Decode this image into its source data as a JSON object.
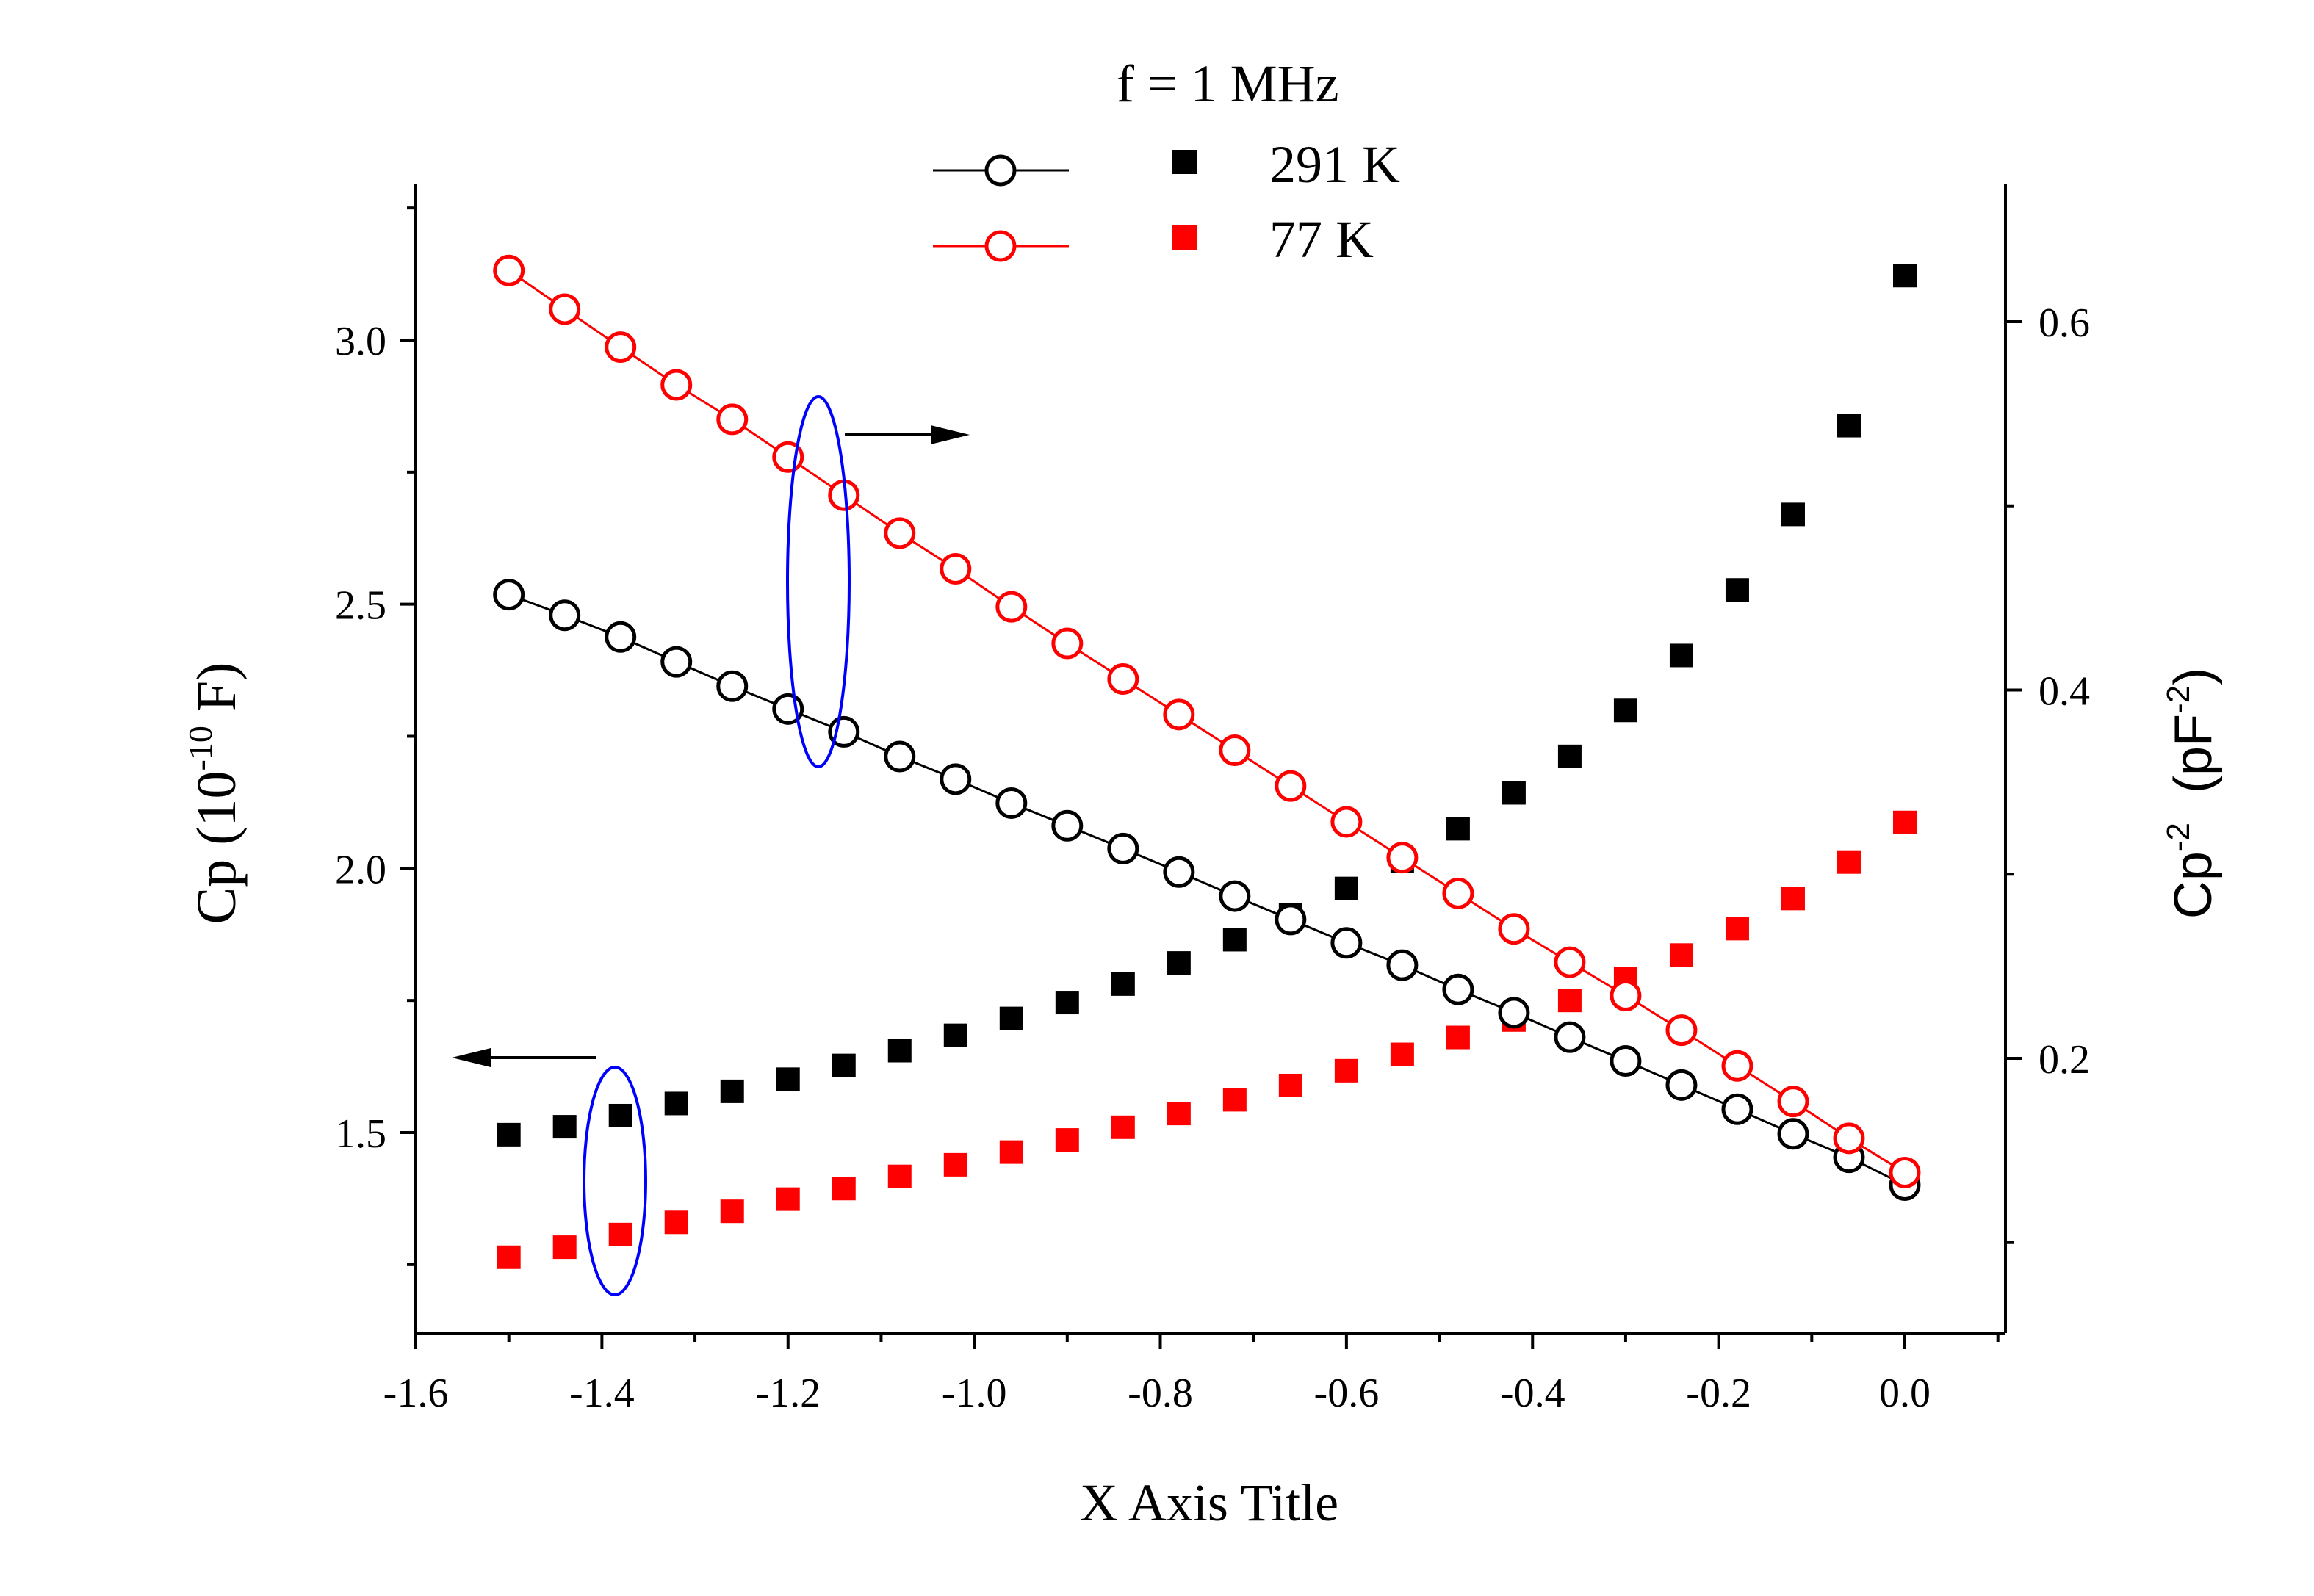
{
  "chart_data": {
    "type": "scatter",
    "annotation": "f = 1 MHz",
    "xlabel": "X Axis Title",
    "ylabel_left": {
      "base": "Cp (10",
      "sup": "-10",
      "tail": " F)"
    },
    "ylabel_right": {
      "base": "Cp",
      "sup1": "-2",
      "mid": "  (pF",
      "sup2": "-2",
      "tail": ")"
    },
    "xlim": [
      -1.6,
      0.1
    ],
    "ylim_left": [
      1.15,
      3.27
    ],
    "ylim_right": [
      0.05,
      0.675
    ],
    "x_ticks": [
      -1.6,
      -1.4,
      -1.2,
      -1.0,
      -0.8,
      -0.6,
      -0.4,
      -0.2,
      0.0
    ],
    "x_tick_labels": [
      "-1.6",
      "-1.4",
      "-1.2",
      "-1.0",
      "-0.8",
      "-0.6",
      "-0.4",
      "-0.2",
      "0.0"
    ],
    "y_left_ticks": [
      1.5,
      2.0,
      2.5,
      3.0
    ],
    "y_left_tick_labels": [
      "1.5",
      "2.0",
      "2.5",
      "3.0"
    ],
    "y_right_ticks": [
      0.2,
      0.4,
      0.6
    ],
    "y_right_tick_labels": [
      "0.2",
      "0.4",
      "0.6"
    ],
    "legend": {
      "placement": "top-center",
      "entries": [
        {
          "label": "291 K",
          "color": "#000000"
        },
        {
          "label": "77 K",
          "color": "#ff0000"
        }
      ]
    },
    "x": [
      -1.5,
      -1.44,
      -1.38,
      -1.32,
      -1.26,
      -1.2,
      -1.14,
      -1.08,
      -1.02,
      -0.96,
      -0.9,
      -0.84,
      -0.78,
      -0.72,
      -0.66,
      -0.6,
      -0.54,
      -0.48,
      -0.42,
      -0.36,
      -0.3,
      -0.24,
      -0.18,
      -0.12,
      -0.06,
      0.0
    ],
    "series": [
      {
        "name": "291 K",
        "axis": "left",
        "marker": "square",
        "color": "#000000",
        "values": [
          1.496,
          1.511,
          1.532,
          1.555,
          1.578,
          1.601,
          1.627,
          1.655,
          1.684,
          1.716,
          1.746,
          1.781,
          1.821,
          1.865,
          1.912,
          1.962,
          2.013,
          2.075,
          2.143,
          2.212,
          2.299,
          2.403,
          2.527,
          2.67,
          2.838,
          3.122
        ]
      },
      {
        "name": "77 K",
        "axis": "left",
        "marker": "square",
        "color": "#ff0000",
        "values": [
          1.264,
          1.283,
          1.307,
          1.33,
          1.351,
          1.374,
          1.394,
          1.417,
          1.439,
          1.463,
          1.486,
          1.51,
          1.536,
          1.562,
          1.589,
          1.617,
          1.648,
          1.68,
          1.713,
          1.75,
          1.791,
          1.836,
          1.886,
          1.943,
          2.012,
          2.087
        ]
      },
      {
        "name": "291 K",
        "axis": "right",
        "marker": "open-circle",
        "color": "#000000",
        "values": [
          0.4518,
          0.4406,
          0.4288,
          0.4153,
          0.4021,
          0.3897,
          0.3773,
          0.3639,
          0.3516,
          0.3386,
          0.3263,
          0.3139,
          0.3012,
          0.2881,
          0.2754,
          0.2627,
          0.2506,
          0.2374,
          0.2248,
          0.2115,
          0.1986,
          0.1855,
          0.1724,
          0.159,
          0.1463,
          0.1312
        ]
      },
      {
        "name": "77 K",
        "axis": "right",
        "marker": "open-circle",
        "color": "#ff0000",
        "values": [
          0.6278,
          0.6068,
          0.5862,
          0.5657,
          0.547,
          0.5265,
          0.5058,
          0.4852,
          0.4658,
          0.4452,
          0.4253,
          0.406,
          0.3867,
          0.3673,
          0.3479,
          0.3284,
          0.309,
          0.2896,
          0.2703,
          0.2522,
          0.2341,
          0.2153,
          0.1959,
          0.1766,
          0.1566,
          0.138
        ]
      }
    ],
    "ellipse_color": "#0000ff"
  }
}
